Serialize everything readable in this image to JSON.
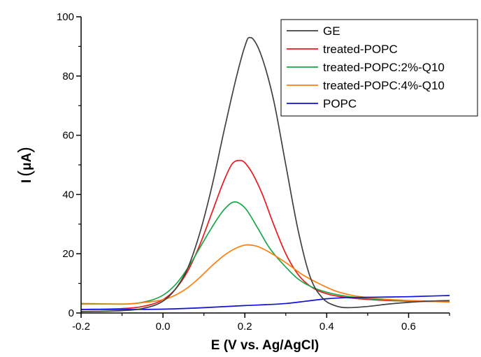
{
  "chart_data": {
    "type": "line",
    "xlabel": "E (V vs. Ag/AgCl)",
    "ylabel": "I (μA)",
    "ylabel_prefix": "I",
    "ylabel_unit": "μA",
    "xlim": [
      -0.2,
      0.7
    ],
    "ylim": [
      0,
      100
    ],
    "xticks": [
      -0.2,
      0.0,
      0.2,
      0.4,
      0.6
    ],
    "xtick_labels": [
      "-0.2",
      "0.0",
      "0.2",
      "0.4",
      "0.6"
    ],
    "yticks": [
      0,
      20,
      40,
      60,
      80,
      100
    ],
    "ytick_labels": [
      "0",
      "20",
      "40",
      "60",
      "80",
      "100"
    ],
    "grid": false,
    "legend_position": "top-right",
    "series": [
      {
        "name": "GE",
        "color": "#404040",
        "x": [
          -0.2,
          -0.1,
          -0.05,
          0.0,
          0.03,
          0.06,
          0.09,
          0.12,
          0.15,
          0.18,
          0.2,
          0.21,
          0.22,
          0.24,
          0.27,
          0.3,
          0.33,
          0.36,
          0.39,
          0.42,
          0.45,
          0.5,
          0.55,
          0.6,
          0.65,
          0.7
        ],
        "y": [
          0.5,
          0.8,
          1.5,
          4.0,
          8.0,
          15.0,
          27.0,
          43.0,
          62.0,
          80.0,
          90.0,
          93.0,
          92.5,
          87.0,
          72.0,
          50.0,
          28.0,
          12.0,
          5.0,
          2.5,
          1.8,
          2.2,
          3.0,
          3.6,
          4.0,
          4.2
        ]
      },
      {
        "name": "treated-POPC",
        "color": "#e8191b",
        "x": [
          -0.2,
          -0.1,
          -0.05,
          0.0,
          0.03,
          0.06,
          0.09,
          0.12,
          0.15,
          0.17,
          0.19,
          0.21,
          0.24,
          0.27,
          0.3,
          0.33,
          0.36,
          0.4,
          0.45,
          0.5,
          0.55,
          0.6,
          0.65,
          0.7
        ],
        "y": [
          1.2,
          1.5,
          2.2,
          4.5,
          8.0,
          14.0,
          23.0,
          34.0,
          45.0,
          50.5,
          51.5,
          49.0,
          41.0,
          30.0,
          20.0,
          13.0,
          9.0,
          6.5,
          5.2,
          4.6,
          4.2,
          4.0,
          3.9,
          3.9
        ]
      },
      {
        "name": "treated-POPC:2%-Q10",
        "color": "#1aa64a",
        "x": [
          -0.2,
          -0.1,
          -0.05,
          0.0,
          0.03,
          0.06,
          0.09,
          0.12,
          0.15,
          0.175,
          0.2,
          0.23,
          0.26,
          0.3,
          0.33,
          0.36,
          0.4,
          0.45,
          0.5,
          0.55,
          0.6,
          0.65,
          0.7
        ],
        "y": [
          3.2,
          3.0,
          3.6,
          6.0,
          9.5,
          15.0,
          22.0,
          29.0,
          35.0,
          37.5,
          35.5,
          29.0,
          22.0,
          15.5,
          11.5,
          9.0,
          7.0,
          5.6,
          4.9,
          4.4,
          4.2,
          4.0,
          3.9
        ]
      },
      {
        "name": "treated-POPC:4%-Q10",
        "color": "#ff7f0e",
        "x": [
          -0.2,
          -0.1,
          -0.05,
          0.0,
          0.03,
          0.06,
          0.09,
          0.12,
          0.15,
          0.18,
          0.205,
          0.23,
          0.26,
          0.3,
          0.34,
          0.38,
          0.42,
          0.46,
          0.5,
          0.55,
          0.6,
          0.65,
          0.7
        ],
        "y": [
          3.0,
          3.0,
          3.5,
          4.5,
          6.0,
          8.5,
          12.0,
          16.0,
          19.5,
          22.0,
          23.0,
          22.5,
          20.5,
          17.0,
          13.0,
          10.0,
          7.5,
          6.0,
          5.2,
          4.6,
          4.2,
          3.9,
          3.7
        ]
      },
      {
        "name": "POPC",
        "color": "#1010e0",
        "x": [
          -0.2,
          -0.1,
          0.0,
          0.1,
          0.2,
          0.3,
          0.35,
          0.4,
          0.45,
          0.5,
          0.55,
          0.6,
          0.65,
          0.7
        ],
        "y": [
          1.2,
          1.2,
          1.3,
          1.8,
          2.5,
          3.2,
          4.0,
          4.8,
          5.2,
          5.3,
          5.4,
          5.5,
          5.7,
          5.9
        ]
      }
    ]
  }
}
